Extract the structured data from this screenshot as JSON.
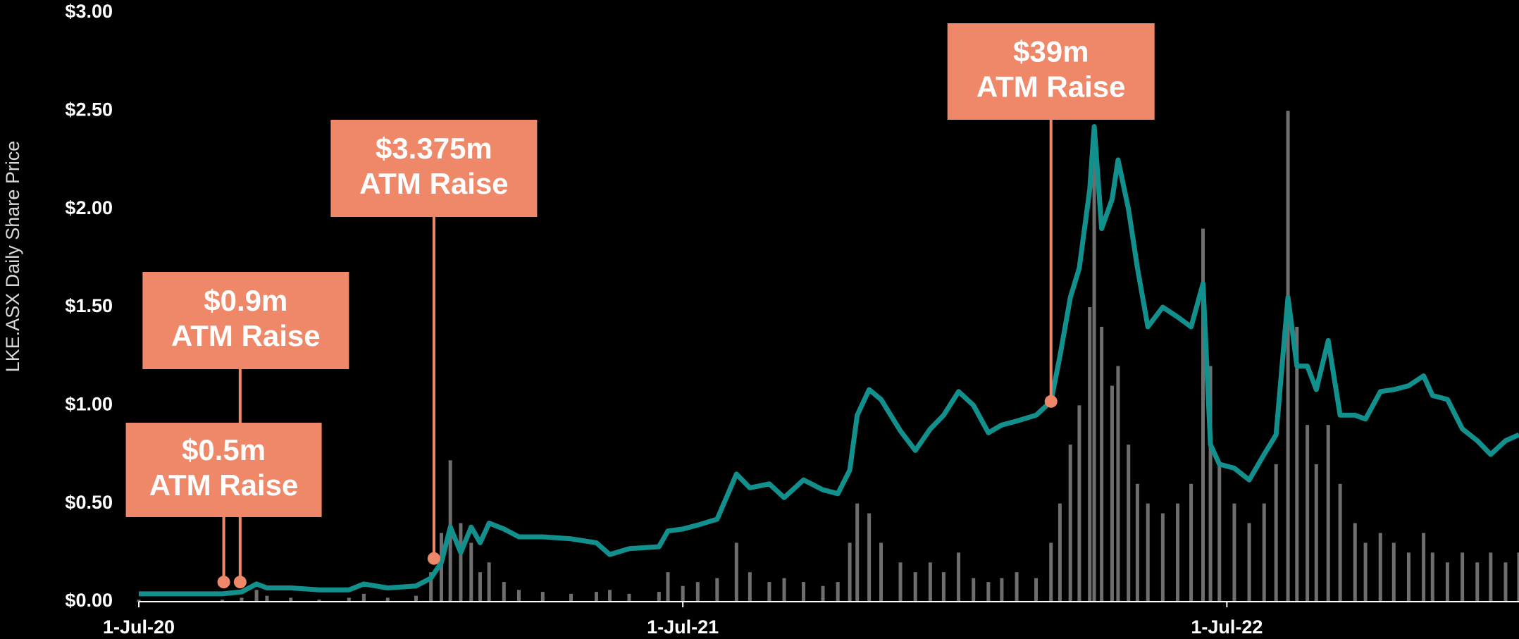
{
  "chart_data": {
    "type": "line",
    "y_label": "LKE.ASX Daily Share Price",
    "xlim": [
      "2020-07-01",
      "2023-01-13"
    ],
    "xticks": [
      {
        "value": "2020-07-01",
        "label": "1-Jul-20"
      },
      {
        "value": "2021-07-01",
        "label": "1-Jul-21"
      },
      {
        "value": "2022-07-01",
        "label": "1-Jul-22"
      }
    ],
    "ylim": [
      0,
      3
    ],
    "yticks": [
      {
        "value": 0,
        "label": "$0.00"
      },
      {
        "value": 0.5,
        "label": "$0.50"
      },
      {
        "value": 1,
        "label": "$1.00"
      },
      {
        "value": 1.5,
        "label": "$1.50"
      },
      {
        "value": 2,
        "label": "$2.00"
      },
      {
        "value": 2.5,
        "label": "$2.50"
      },
      {
        "value": 3,
        "label": "$3.00"
      }
    ],
    "x": [
      "2020-07-01",
      "2020-08-26",
      "2020-09-08",
      "2020-09-18",
      "2020-09-25",
      "2020-10-11",
      "2020-10-30",
      "2020-11-19",
      "2020-11-29",
      "2020-12-15",
      "2021-01-03",
      "2021-01-13",
      "2021-01-20",
      "2021-01-26",
      "2021-02-02",
      "2021-02-09",
      "2021-02-15",
      "2021-02-21",
      "2021-03-03",
      "2021-03-13",
      "2021-03-29",
      "2021-04-17",
      "2021-05-04",
      "2021-05-13",
      "2021-05-26",
      "2021-06-15",
      "2021-06-21",
      "2021-07-01",
      "2021-07-11",
      "2021-07-24",
      "2021-08-06",
      "2021-08-15",
      "2021-08-28",
      "2021-09-07",
      "2021-09-20",
      "2021-10-03",
      "2021-10-13",
      "2021-10-21",
      "2021-10-26",
      "2021-11-03",
      "2021-11-11",
      "2021-11-24",
      "2021-12-04",
      "2021-12-14",
      "2021-12-23",
      "2022-01-02",
      "2022-01-12",
      "2022-01-22",
      "2022-01-31",
      "2022-02-10",
      "2022-02-23",
      "2022-03-05",
      "2022-03-11",
      "2022-03-18",
      "2022-03-24",
      "2022-03-31",
      "2022-04-03",
      "2022-04-08",
      "2022-04-15",
      "2022-04-19",
      "2022-04-26",
      "2022-05-02",
      "2022-05-09",
      "2022-05-19",
      "2022-05-29",
      "2022-06-07",
      "2022-06-15",
      "2022-06-20",
      "2022-06-26",
      "2022-07-06",
      "2022-07-16",
      "2022-07-26",
      "2022-08-03",
      "2022-08-11",
      "2022-08-17",
      "2022-08-24",
      "2022-08-30",
      "2022-09-07",
      "2022-09-15",
      "2022-09-25",
      "2022-10-02",
      "2022-10-12",
      "2022-10-21",
      "2022-10-31",
      "2022-11-10",
      "2022-11-16",
      "2022-11-26",
      "2022-12-06",
      "2022-12-16",
      "2022-12-25",
      "2023-01-04",
      "2023-01-13"
    ],
    "series": [
      {
        "type": "bar",
        "color": "#6e6e6e",
        "values": [
          0.01,
          0.01,
          0.02,
          0.06,
          0.03,
          0.02,
          0.01,
          0.02,
          0.04,
          0.02,
          0.03,
          0.15,
          0.35,
          0.72,
          0.4,
          0.3,
          0.15,
          0.2,
          0.1,
          0.06,
          0.05,
          0.04,
          0.05,
          0.06,
          0.04,
          0.05,
          0.15,
          0.08,
          0.1,
          0.12,
          0.3,
          0.15,
          0.1,
          0.12,
          0.1,
          0.08,
          0.1,
          0.3,
          0.5,
          0.45,
          0.3,
          0.2,
          0.15,
          0.2,
          0.15,
          0.25,
          0.12,
          0.1,
          0.12,
          0.15,
          0.12,
          0.3,
          0.5,
          0.8,
          1.0,
          1.5,
          2.3,
          1.4,
          1.1,
          1.2,
          0.8,
          0.6,
          0.5,
          0.45,
          0.5,
          0.6,
          1.9,
          1.2,
          0.7,
          0.5,
          0.4,
          0.5,
          0.7,
          2.5,
          1.4,
          0.9,
          0.7,
          0.9,
          0.6,
          0.4,
          0.3,
          0.35,
          0.3,
          0.25,
          0.35,
          0.25,
          0.2,
          0.25,
          0.2,
          0.25,
          0.2,
          0.25
        ]
      },
      {
        "type": "line",
        "color": "#12908e",
        "values": [
          0.04,
          0.04,
          0.05,
          0.09,
          0.07,
          0.07,
          0.06,
          0.06,
          0.09,
          0.07,
          0.08,
          0.12,
          0.2,
          0.38,
          0.25,
          0.38,
          0.3,
          0.4,
          0.37,
          0.33,
          0.33,
          0.32,
          0.3,
          0.24,
          0.27,
          0.28,
          0.36,
          0.37,
          0.39,
          0.42,
          0.65,
          0.58,
          0.6,
          0.53,
          0.62,
          0.57,
          0.55,
          0.67,
          0.95,
          1.08,
          1.03,
          0.87,
          0.77,
          0.88,
          0.95,
          1.07,
          1.0,
          0.86,
          0.9,
          0.92,
          0.95,
          1.02,
          1.25,
          1.55,
          1.7,
          2.1,
          2.42,
          1.9,
          2.05,
          2.25,
          2.0,
          1.7,
          1.4,
          1.5,
          1.45,
          1.4,
          1.62,
          0.8,
          0.7,
          0.68,
          0.62,
          0.75,
          0.85,
          1.55,
          1.2,
          1.2,
          1.08,
          1.33,
          0.95,
          0.95,
          0.93,
          1.07,
          1.08,
          1.1,
          1.15,
          1.05,
          1.03,
          0.88,
          0.82,
          0.75,
          0.82,
          0.85
        ]
      }
    ],
    "annotation_color": "#ef8868",
    "annotations": [
      {
        "lines": [
          "$0.5m",
          "ATM Raise"
        ],
        "x": "2020-08-27",
        "y": 0.1
      },
      {
        "lines": [
          "$0.9m",
          "ATM Raise"
        ],
        "x": "2020-09-07",
        "y": 0.1
      },
      {
        "lines": [
          "$3.375m",
          "ATM Raise"
        ],
        "x": "2021-01-15",
        "y": 0.22
      },
      {
        "lines": [
          "$39m",
          "ATM Raise"
        ],
        "x": "2022-03-05",
        "y": 1.02
      }
    ]
  }
}
